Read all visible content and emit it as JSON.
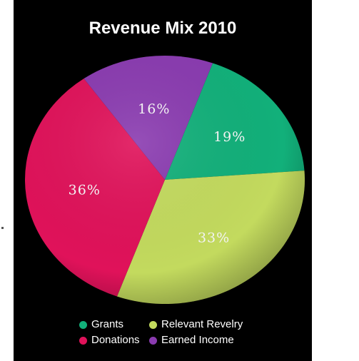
{
  "chart_data": {
    "type": "pie",
    "title": "Revenue Mix 2010",
    "slices": [
      {
        "name": "Grants",
        "value": 19,
        "label": "19%",
        "color": "#12b07a"
      },
      {
        "name": "Relevant Revelry",
        "value": 33,
        "label": "33%",
        "color": "#c3da5e"
      },
      {
        "name": "Donations",
        "value": 36,
        "label": "36%",
        "color": "#e0125a"
      },
      {
        "name": "Earned Income",
        "value": 16,
        "label": "16%",
        "color": "#8a3bb0"
      }
    ],
    "legend": {
      "placement": "bottom",
      "entries": [
        "Grants",
        "Relevant Revelry",
        "Donations",
        "Earned Income"
      ]
    },
    "label_color": "#f2f2f2",
    "background": "#000000"
  }
}
